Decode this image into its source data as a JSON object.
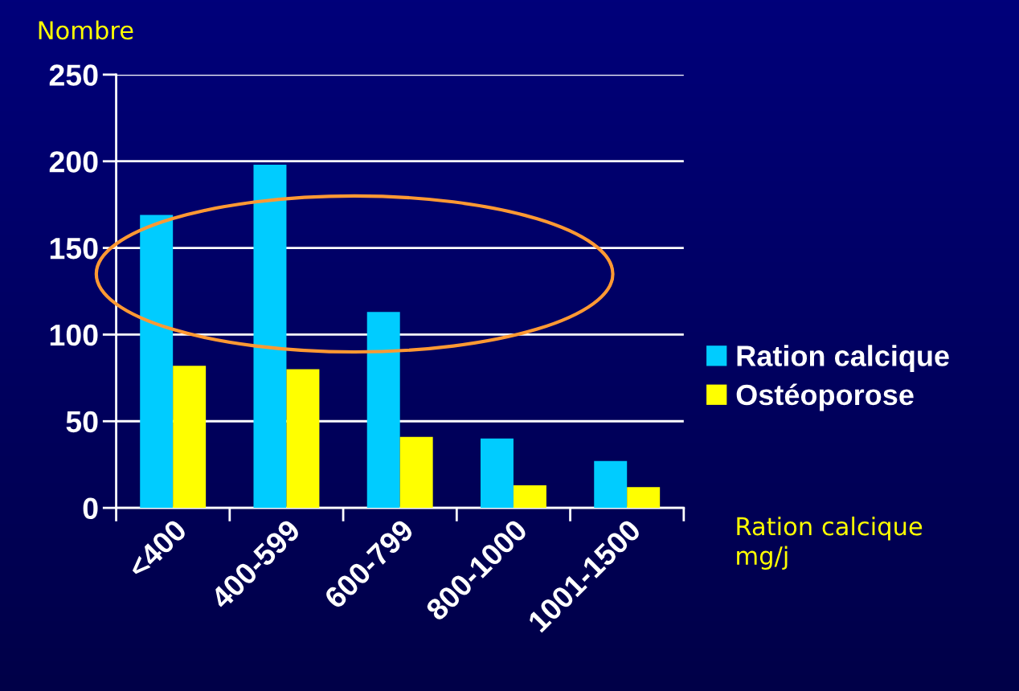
{
  "chart_data": {
    "type": "bar",
    "ylabel": "Nombre",
    "xlabel": "Ration calcique\nmg/j",
    "categories": [
      "<400",
      "400-599",
      "600-799",
      "800-1000",
      "1001-1500"
    ],
    "series": [
      {
        "name": "Ration calcique",
        "color": "#00ccff",
        "values": [
          169,
          198,
          113,
          40,
          27
        ]
      },
      {
        "name": "Ostéoporose",
        "color": "#ffff00",
        "values": [
          82,
          80,
          41,
          13,
          12
        ]
      }
    ],
    "ylim": [
      0,
      250
    ],
    "yticks": [
      0,
      50,
      100,
      150,
      200,
      250
    ],
    "grid": "y",
    "legend": "right"
  }
}
